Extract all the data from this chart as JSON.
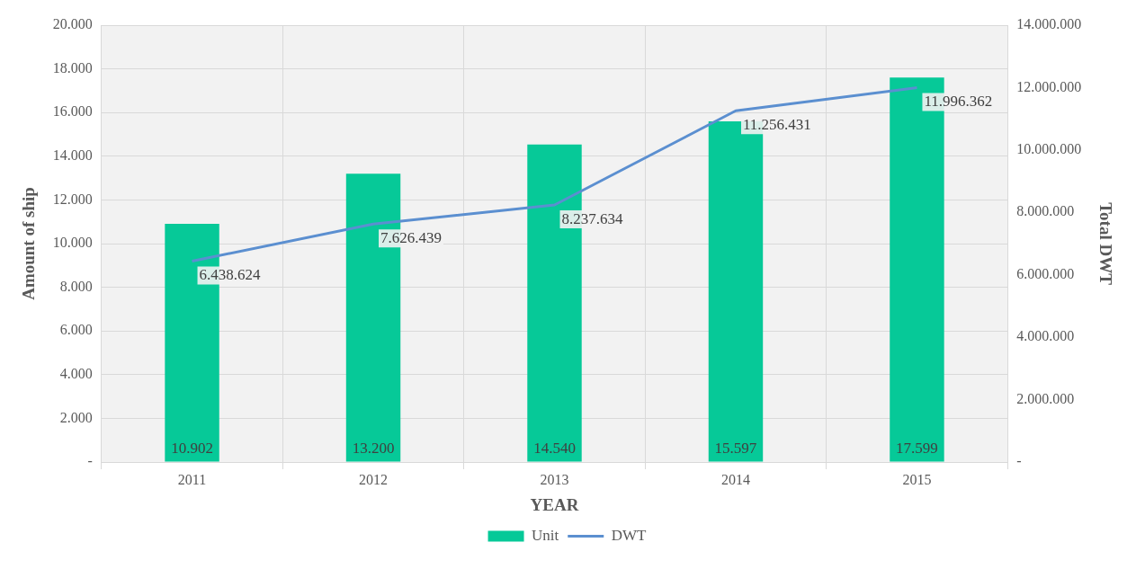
{
  "chart_data": {
    "type": "bar",
    "xlabel": "YEAR",
    "ylabel": "Amount of ship",
    "y2label": "Total DWT",
    "categories": [
      "2011",
      "2012",
      "2013",
      "2014",
      "2015"
    ],
    "series": [
      {
        "name": "Unit",
        "color": "#06c998",
        "values": [
          10902,
          13200,
          14540,
          15597,
          17599
        ],
        "value_labels": [
          "10.902",
          "13.200",
          "14.540",
          "15.597",
          "17.599"
        ]
      },
      {
        "name": "DWT",
        "type": "line",
        "axis": "y2",
        "color": "#5b8fd0",
        "values": [
          6438624,
          7626439,
          8237634,
          11256431,
          11996362
        ],
        "value_labels": [
          "6.438.624",
          "7.626.439",
          "8.237.634",
          "11.256.431",
          "11.996.362"
        ]
      }
    ],
    "ylim": [
      0,
      20000
    ],
    "yticks": [
      {
        "value": 0,
        "label": "-"
      },
      {
        "value": 2000,
        "label": "2.000"
      },
      {
        "value": 4000,
        "label": "4.000"
      },
      {
        "value": 6000,
        "label": "6.000"
      },
      {
        "value": 8000,
        "label": "8.000"
      },
      {
        "value": 10000,
        "label": "10.000"
      },
      {
        "value": 12000,
        "label": "12.000"
      },
      {
        "value": 14000,
        "label": "14.000"
      },
      {
        "value": 16000,
        "label": "16.000"
      },
      {
        "value": 18000,
        "label": "18.000"
      },
      {
        "value": 20000,
        "label": "20.000"
      }
    ],
    "y2lim": [
      0,
      14000000
    ],
    "y2ticks": [
      {
        "value": 0,
        "label": "-"
      },
      {
        "value": 2000000,
        "label": "2.000.000"
      },
      {
        "value": 4000000,
        "label": "4.000.000"
      },
      {
        "value": 6000000,
        "label": "6.000.000"
      },
      {
        "value": 8000000,
        "label": "8.000.000"
      },
      {
        "value": 10000000,
        "label": "10.000.000"
      },
      {
        "value": 12000000,
        "label": "12.000.000"
      },
      {
        "value": 14000000,
        "label": "14.000.000"
      }
    ],
    "grid": true,
    "legend": "bottom",
    "marker": "none",
    "line_style": "solid"
  }
}
